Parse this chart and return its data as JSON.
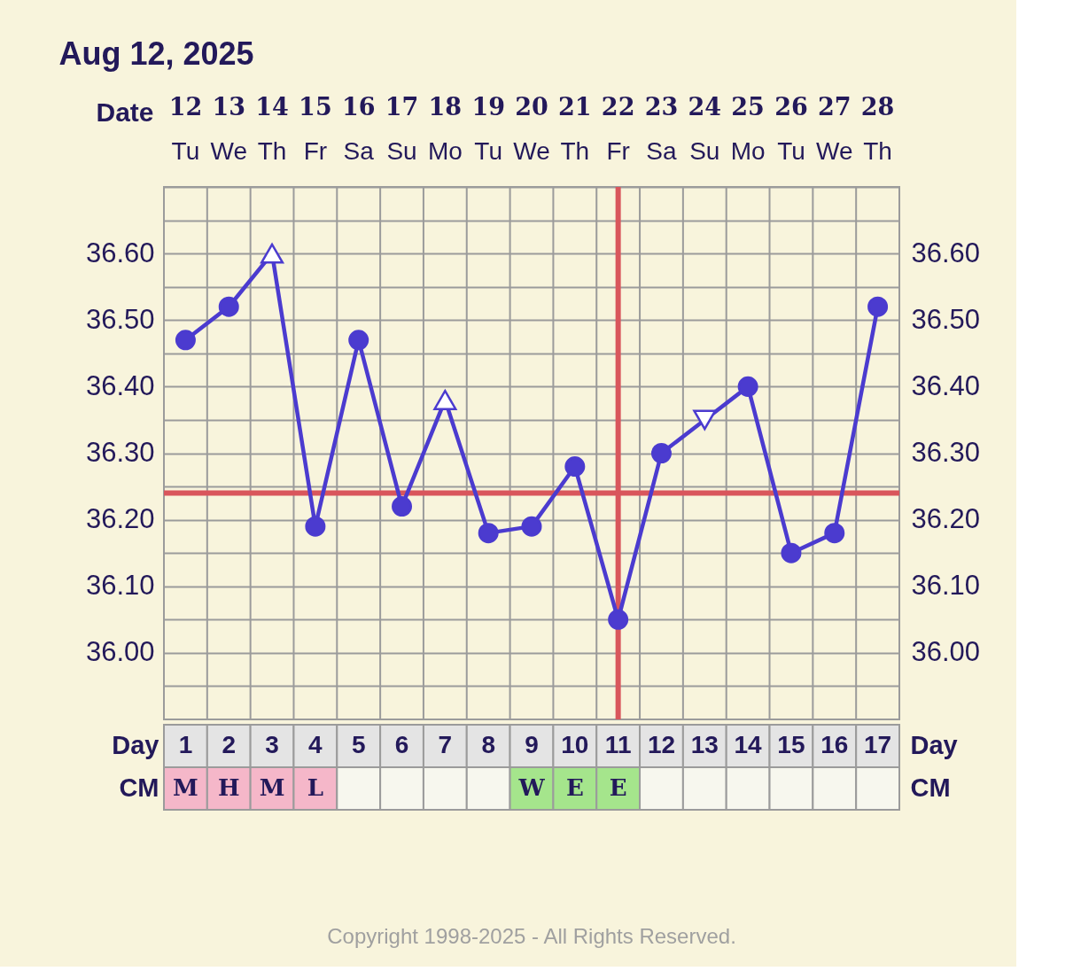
{
  "chart_data": [
    {
      "type": "line",
      "title": "Aug 12, 2025",
      "xlabel": "Date",
      "categories": [
        "12\nTu",
        "13\nWe",
        "14\nTh",
        "15\nFr",
        "16\nSa",
        "17\nSu",
        "18\nMo",
        "19\nTu",
        "20\nWe",
        "21\nTh",
        "22\nFr",
        "23\nSa",
        "24\nSu",
        "25\nMo",
        "26\nTu",
        "27\nWe",
        "28\nTh"
      ],
      "series": [
        {
          "type": "line",
          "color": "#4b3bcf",
          "marker": "none",
          "values": [
            36.47,
            36.52,
            36.6,
            36.19,
            36.47,
            36.22,
            36.38,
            36.18,
            36.19,
            36.28,
            36.05,
            36.3,
            36.35,
            36.4,
            36.15,
            36.18,
            36.52
          ]
        },
        {
          "type": "scatter",
          "color": "#4b3bcf",
          "marker": "circle",
          "values": [
            36.47,
            36.52,
            null,
            36.19,
            36.47,
            36.22,
            null,
            36.18,
            36.19,
            36.28,
            36.05,
            36.3,
            null,
            36.4,
            36.15,
            36.18,
            36.52
          ]
        },
        {
          "type": "scatter",
          "color": "#4b3bcf",
          "marker": "triangle",
          "values": [
            null,
            null,
            36.6,
            null,
            null,
            null,
            36.38,
            null,
            null,
            null,
            null,
            null,
            null,
            null,
            null,
            null,
            null
          ]
        },
        {
          "type": "scatter",
          "color": "#4b3bcf",
          "marker": "triangle-down",
          "values": [
            null,
            null,
            null,
            null,
            null,
            null,
            null,
            null,
            null,
            null,
            null,
            null,
            36.35,
            null,
            null,
            null,
            null
          ]
        }
      ],
      "ylim": [
        35.9,
        36.7
      ],
      "yticks": [
        {
          "value": 35.95,
          "label": null
        },
        {
          "value": 36.0,
          "label": "36.00"
        },
        {
          "value": 36.05,
          "label": null
        },
        {
          "value": 36.1,
          "label": "36.10"
        },
        {
          "value": 36.15,
          "label": null
        },
        {
          "value": 36.2,
          "label": "36.20"
        },
        {
          "value": 36.25,
          "label": null
        },
        {
          "value": 36.3,
          "label": "36.30"
        },
        {
          "value": 36.35,
          "label": null
        },
        {
          "value": 36.4,
          "label": "36.40"
        },
        {
          "value": 36.45,
          "label": null
        },
        {
          "value": 36.5,
          "label": "36.50"
        },
        {
          "value": 36.55,
          "label": null
        },
        {
          "value": 36.6,
          "label": "36.60"
        },
        {
          "value": 36.65,
          "label": null
        },
        {
          "value": 36.7,
          "label": null
        }
      ],
      "y2lim": [
        35.9,
        36.7
      ],
      "y2ticks": [
        {
          "value": 36.0,
          "label": "36.00"
        },
        {
          "value": 36.1,
          "label": "36.10"
        },
        {
          "value": 36.2,
          "label": "36.20"
        },
        {
          "value": 36.3,
          "label": "36.30"
        },
        {
          "value": 36.4,
          "label": "36.40"
        },
        {
          "value": 36.5,
          "label": "36.50"
        },
        {
          "value": 36.6,
          "label": "36.60"
        }
      ],
      "grid": true,
      "ref_lines": [
        {
          "axis": "y",
          "value": 36.24,
          "color": "#d9565c"
        },
        {
          "axis": "x",
          "value": "22\nFr",
          "color": "#d9565c"
        }
      ]
    },
    {
      "type": "heatmap",
      "categories": [
        null,
        null,
        null,
        null,
        null,
        null,
        null,
        null,
        null,
        null,
        null,
        null,
        null,
        null,
        null,
        null,
        null
      ],
      "y_categories": [
        "Day",
        "CM"
      ],
      "y2_categories": [
        "Day",
        "CM"
      ],
      "tick_labels": "y",
      "cells": [
        [
          null,
          null,
          null,
          null,
          null,
          null,
          null,
          null,
          null,
          null,
          null,
          null,
          null,
          null,
          null,
          null,
          null
        ],
        [
          null,
          null,
          null,
          null,
          null,
          null,
          null,
          null,
          null,
          null,
          null,
          null,
          null,
          null,
          null,
          null,
          null
        ]
      ],
      "cell_labels": [
        [
          "1",
          "2",
          "3",
          "4",
          "5",
          "6",
          "7",
          "8",
          "9",
          "10",
          "11",
          "12",
          "13",
          "14",
          "15",
          "16",
          "17"
        ],
        [
          "M",
          "H",
          "M",
          "L",
          null,
          null,
          null,
          null,
          "W",
          "E",
          "E",
          null,
          null,
          null,
          null,
          null,
          null
        ]
      ],
      "colors": [
        [
          "#e4e4e4",
          "#e4e4e4",
          "#e4e4e4",
          "#e4e4e4",
          "#e4e4e4",
          "#e4e4e4",
          "#e4e4e4",
          "#e4e4e4",
          "#e4e4e4",
          "#e4e4e4",
          "#e4e4e4",
          "#e4e4e4",
          "#e4e4e4",
          "#e4e4e4",
          "#e4e4e4",
          "#e4e4e4",
          "#e4e4e4"
        ],
        [
          "#f5b7c9",
          "#f5b7c9",
          "#f5b7c9",
          "#f5b7c9",
          "#f7f7ee",
          "#f7f7ee",
          "#f7f7ee",
          "#f7f7ee",
          "#a5e58c",
          "#a5e58c",
          "#a5e58c",
          "#f7f7ee",
          "#f7f7ee",
          "#f7f7ee",
          "#f7f7ee",
          "#f7f7ee",
          "#f7f7ee"
        ]
      ],
      "annotations": [
        "Copyright 1998-2025 - All Rights Reserved."
      ]
    }
  ]
}
